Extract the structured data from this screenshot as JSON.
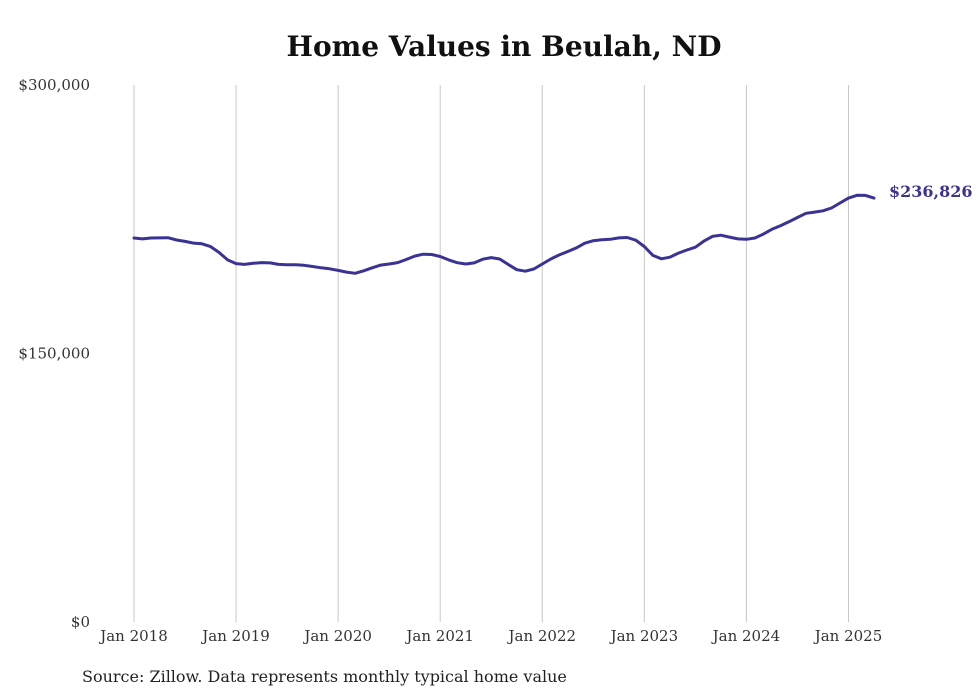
{
  "chart_data": {
    "type": "line",
    "title": "Home Values in Beulah, ND",
    "source": "Source: Zillow. Data represents monthly typical home value",
    "xlabel": "",
    "ylabel": "",
    "ylim": [
      0,
      300000
    ],
    "y_ticks": [
      {
        "value": 0,
        "label": "$0"
      },
      {
        "value": 150000,
        "label": "$150,000"
      },
      {
        "value": 300000,
        "label": "$300,000"
      }
    ],
    "x_ticks": [
      {
        "value": "2018-01",
        "label": "Jan 2018"
      },
      {
        "value": "2019-01",
        "label": "Jan 2019"
      },
      {
        "value": "2020-01",
        "label": "Jan 2020"
      },
      {
        "value": "2021-01",
        "label": "Jan 2021"
      },
      {
        "value": "2022-01",
        "label": "Jan 2022"
      },
      {
        "value": "2023-01",
        "label": "Jan 2023"
      },
      {
        "value": "2024-01",
        "label": "Jan 2024"
      },
      {
        "value": "2025-01",
        "label": "Jan 2025"
      }
    ],
    "xlim": [
      "2018-01",
      "2025-04"
    ],
    "grid": {
      "vertical": true,
      "horizontal": false
    },
    "series": [
      {
        "color": "#3a3394",
        "end_label": "$236,826",
        "points": [
          [
            "2018-01",
            214500
          ],
          [
            "2018-02",
            214000
          ],
          [
            "2018-03",
            214500
          ],
          [
            "2018-04",
            214600
          ],
          [
            "2018-05",
            214700
          ],
          [
            "2018-06",
            213400
          ],
          [
            "2018-07",
            212600
          ],
          [
            "2018-08",
            211700
          ],
          [
            "2018-09",
            211300
          ],
          [
            "2018-10",
            209700
          ],
          [
            "2018-11",
            206400
          ],
          [
            "2018-12",
            202300
          ],
          [
            "2019-01",
            200200
          ],
          [
            "2019-02",
            199800
          ],
          [
            "2019-03",
            200400
          ],
          [
            "2019-04",
            200800
          ],
          [
            "2019-05",
            200600
          ],
          [
            "2019-06",
            199800
          ],
          [
            "2019-07",
            199600
          ],
          [
            "2019-08",
            199600
          ],
          [
            "2019-09",
            199300
          ],
          [
            "2019-10",
            198600
          ],
          [
            "2019-11",
            197900
          ],
          [
            "2019-12",
            197300
          ],
          [
            "2020-01",
            196400
          ],
          [
            "2020-02",
            195500
          ],
          [
            "2020-03",
            194800
          ],
          [
            "2020-04",
            196200
          ],
          [
            "2020-05",
            197900
          ],
          [
            "2020-06",
            199400
          ],
          [
            "2020-07",
            200000
          ],
          [
            "2020-08",
            200800
          ],
          [
            "2020-09",
            202500
          ],
          [
            "2020-10",
            204400
          ],
          [
            "2020-11",
            205500
          ],
          [
            "2020-12",
            205300
          ],
          [
            "2021-01",
            204200
          ],
          [
            "2021-02",
            202300
          ],
          [
            "2021-03",
            200700
          ],
          [
            "2021-04",
            200000
          ],
          [
            "2021-05",
            200600
          ],
          [
            "2021-06",
            202700
          ],
          [
            "2021-07",
            203600
          ],
          [
            "2021-08",
            202800
          ],
          [
            "2021-09",
            199700
          ],
          [
            "2021-10",
            196800
          ],
          [
            "2021-11",
            196000
          ],
          [
            "2021-12",
            197200
          ],
          [
            "2022-01",
            200000
          ],
          [
            "2022-02",
            202800
          ],
          [
            "2022-03",
            205100
          ],
          [
            "2022-04",
            207000
          ],
          [
            "2022-05",
            209000
          ],
          [
            "2022-06",
            211600
          ],
          [
            "2022-07",
            213000
          ],
          [
            "2022-08",
            213600
          ],
          [
            "2022-09",
            213800
          ],
          [
            "2022-10",
            214600
          ],
          [
            "2022-11",
            214800
          ],
          [
            "2022-12",
            213300
          ],
          [
            "2023-01",
            209800
          ],
          [
            "2023-02",
            204800
          ],
          [
            "2023-03",
            202900
          ],
          [
            "2023-04",
            203800
          ],
          [
            "2023-05",
            206100
          ],
          [
            "2023-06",
            207800
          ],
          [
            "2023-07",
            209400
          ],
          [
            "2023-08",
            212800
          ],
          [
            "2023-09",
            215400
          ],
          [
            "2023-10",
            216100
          ],
          [
            "2023-11",
            215000
          ],
          [
            "2023-12",
            214000
          ],
          [
            "2024-01",
            213800
          ],
          [
            "2024-02",
            214500
          ],
          [
            "2024-03",
            216700
          ],
          [
            "2024-04",
            219400
          ],
          [
            "2024-05",
            221400
          ],
          [
            "2024-06",
            223600
          ],
          [
            "2024-07",
            226000
          ],
          [
            "2024-08",
            228300
          ],
          [
            "2024-09",
            229000
          ],
          [
            "2024-10",
            229700
          ],
          [
            "2024-11",
            231300
          ],
          [
            "2024-12",
            234100
          ],
          [
            "2025-01",
            236800
          ],
          [
            "2025-02",
            238400
          ],
          [
            "2025-03",
            238300
          ],
          [
            "2025-04",
            236826
          ]
        ]
      }
    ]
  }
}
